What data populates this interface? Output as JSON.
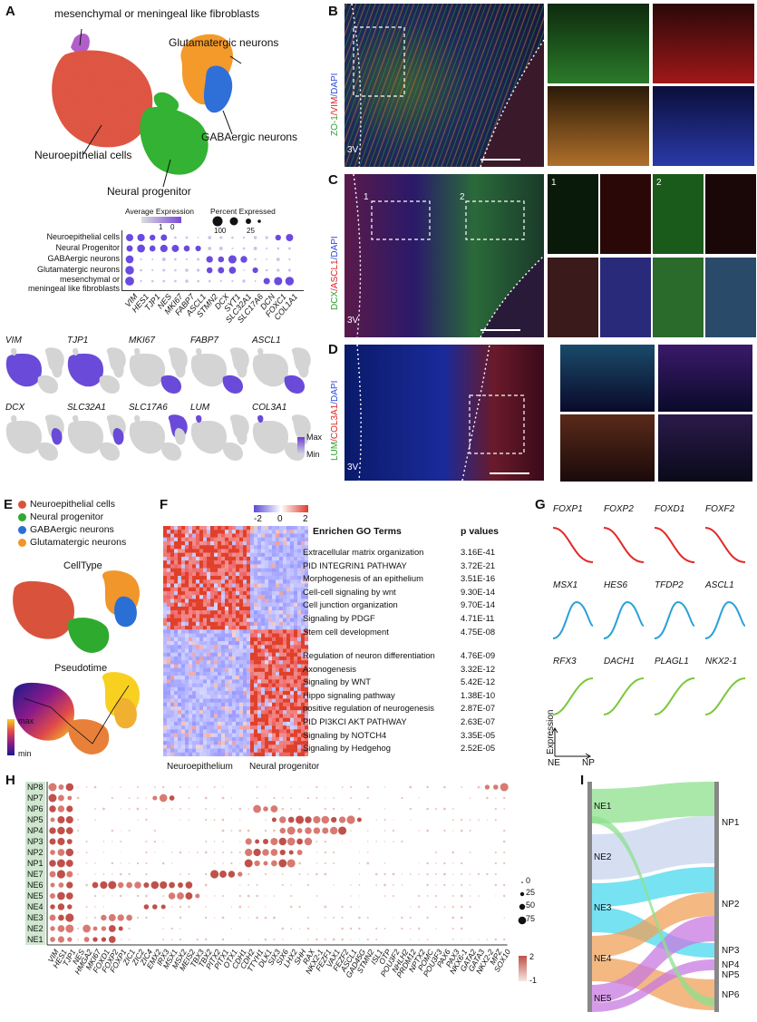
{
  "panels": {
    "A": "A",
    "B": "B",
    "C": "C",
    "D": "D",
    "E": "E",
    "F": "F",
    "G": "G",
    "H": "H",
    "I": "I"
  },
  "panelA": {
    "umap_labels": {
      "mesenchymal": "mesenchymal or meningeal like fibroblasts",
      "glutamatergic": "Glutamatergic neurons",
      "gabaergic": "GABAergic neurons",
      "neuroepithelial": "Neuroepithelial cells",
      "neural_progenitor": "Neural progenitor"
    },
    "legend_avg": "Average Expression",
    "legend_avg_ticks": [
      "1",
      "0"
    ],
    "legend_pct": "Percent Expressed",
    "legend_pct_ticks": [
      "100",
      "25"
    ],
    "dot_rows": [
      "Neuroepithelial cells",
      "Neural Progenitor",
      "GABAergic neurons",
      "Glutamatergic neurons",
      "mesenchymal or",
      "meningeal like fibroblasts"
    ],
    "dot_genes": [
      "VIM",
      "HES1",
      "TJP1",
      "NES",
      "MKI67",
      "FABP7",
      "ASCL1",
      "STMN2",
      "DCX",
      "SYT1",
      "SLC32A1",
      "SLC17A6",
      "DCN",
      "FOXC1",
      "COL1A1"
    ],
    "feature_genes_row1": [
      "VIM",
      "TJP1",
      "MKI67",
      "FABP7",
      "ASCL1"
    ],
    "feature_genes_row2": [
      "DCX",
      "SLC32A1",
      "SLC17A6",
      "LUM",
      "COL3A1"
    ],
    "scale_max": "Max",
    "scale_min": "Min"
  },
  "panelB": {
    "stain_zo1": "ZO-1",
    "stain_vim": "/VIM",
    "stain_dapi": "/DAPI",
    "ventricle": "3V"
  },
  "panelC": {
    "stain_dcx": "DCX",
    "stain_ascl1": "/ASCL1",
    "stain_dapi": "/DAPI",
    "ventricle": "3V",
    "box1": "1",
    "box2": "2"
  },
  "panelD": {
    "stain_lum": "LUM",
    "stain_col": "/COL3A1",
    "stain_dapi": "/DAPI",
    "ventricle": "3V"
  },
  "panelE": {
    "legend": [
      {
        "label": "Neuroepithelial cells",
        "color": "#d9533c"
      },
      {
        "label": "Neural progenitor",
        "color": "#2eaa2e"
      },
      {
        "label": "GABAergic neurons",
        "color": "#2a6fd6"
      },
      {
        "label": "Glutamatergic neurons",
        "color": "#f0962a"
      }
    ],
    "celltype_title": "CellType",
    "pseudotime_title": "Pseudotime",
    "scale_max": "max",
    "scale_min": "min"
  },
  "panelF": {
    "scale_ticks": [
      "-2",
      "0",
      "2"
    ],
    "go_header": "Enrichen GO Terms",
    "pv_header": "p values",
    "terms_top": [
      {
        "term": "Extracellular matrix organization",
        "p": "3.16E-41"
      },
      {
        "term": "PID INTEGRIN1 PATHWAY",
        "p": "3.72E-21"
      },
      {
        "term": "Morphogenesis of an epithelium",
        "p": "3.51E-16"
      },
      {
        "term": "Cell-cell signaling by wnt",
        "p": "9.30E-14"
      },
      {
        "term": "Cell junction organization",
        "p": "9.70E-14"
      },
      {
        "term": "Signaling by PDGF",
        "p": "4.71E-11"
      },
      {
        "term": "Stem cell development",
        "p": "4.75E-08"
      }
    ],
    "terms_bottom": [
      {
        "term": "Regulation of neuron differentiation",
        "p": "4.76E-09"
      },
      {
        "term": "Axonogenesis",
        "p": "3.32E-12"
      },
      {
        "term": "Signaling by WNT",
        "p": "5.42E-12"
      },
      {
        "term": "Hippo signaling pathway",
        "p": "1.38E-10"
      },
      {
        "term": "positive regulation of neurogenesis",
        "p": "2.87E-07"
      },
      {
        "term": "PID PI3KCI AKT PATHWAY",
        "p": "2.63E-07"
      },
      {
        "term": "Signaling by NOTCH4",
        "p": "3.35E-05"
      },
      {
        "term": "Signaling by Hedgehog",
        "p": "2.52E-05"
      }
    ],
    "xlabel_left": "Neuroepithelium",
    "xlabel_right": "Neural progenitor"
  },
  "panelG": {
    "row1": [
      "FOXP1",
      "FOXP2",
      "FOXD1",
      "FOXF2"
    ],
    "row2": [
      "MSX1",
      "HES6",
      "TFDP2",
      "ASCL1"
    ],
    "row3": [
      "RFX3",
      "DACH1",
      "PLAGL1",
      "NKX2-1"
    ],
    "y_axis": "Expression",
    "x_left": "NE",
    "x_right": "NP"
  },
  "panelH": {
    "rows": [
      "NP8",
      "NP7",
      "NP6",
      "NP5",
      "NP4",
      "NP3",
      "NP2",
      "NP1",
      "NE7",
      "NE6",
      "NE5",
      "NE4",
      "NE3",
      "NE2",
      "NE1"
    ],
    "genes": [
      "VIM",
      "HES1",
      "TJP1",
      "NES",
      "HMGA2",
      "MKI67",
      "FOXD1",
      "FOXP2",
      "FOXP1",
      "ZIC1",
      "ZIC2",
      "ZIC4",
      "EMX2",
      "IRX3",
      "MSX1",
      "MSX2",
      "MEIS2",
      "TBX3",
      "TBX2",
      "PITX2",
      "PITX1",
      "OTX1",
      "CDH1",
      "CDH2",
      "TTYH1",
      "DLK1",
      "SIX3",
      "SIX6",
      "LHX2",
      "SHH",
      "RAX",
      "NKX2-1",
      "FEZF1",
      "VAX1",
      "FEZF2",
      "ASCL1",
      "GAD45G",
      "STMN2",
      "ISL1",
      "OTP",
      "POU3F2",
      "NHLH2",
      "PRDM12",
      "NPTX2",
      "POMC",
      "POU3F3",
      "PAX6",
      "PAX3",
      "NKX6-1",
      "GATA2",
      "GATA3",
      "NKX2-2",
      "MPZ",
      "SOX10"
    ],
    "pct_legend": [
      "0",
      "25",
      "50",
      "75"
    ],
    "color_legend": [
      "2",
      "-1"
    ]
  },
  "panelI": {
    "left_nodes": [
      "NE1",
      "NE2",
      "NE3",
      "NE4",
      "NE5"
    ],
    "right_nodes": [
      "NP1",
      "NP2",
      "NP3",
      "NP4",
      "NP5",
      "NP6"
    ]
  }
}
